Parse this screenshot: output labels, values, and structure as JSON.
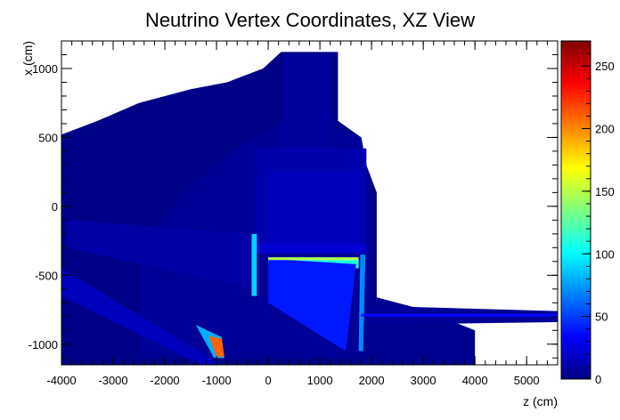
{
  "chart_data": {
    "type": "heatmap",
    "title": "Neutrino Vertex Coordinates, XZ View",
    "xlabel": "z (cm)",
    "ylabel": "x (cm)",
    "xlim": [
      -4000,
      5600
    ],
    "ylim": [
      -1150,
      1200
    ],
    "x_ticks": [
      -4000,
      -3000,
      -2000,
      -1000,
      0,
      1000,
      2000,
      3000,
      4000,
      5000
    ],
    "y_ticks": [
      -1000,
      -500,
      0,
      500,
      1000
    ],
    "colorbar": {
      "min": 0,
      "max": 270,
      "ticks": [
        0,
        50,
        100,
        150,
        200,
        250
      ]
    },
    "colormap": [
      "#00007f",
      "#0000ff",
      "#007fff",
      "#00ffff",
      "#7fff7f",
      "#ffff00",
      "#ff7f00",
      "#ff0000",
      "#7f0000"
    ],
    "grid": false,
    "legend": "none",
    "regions": [
      {
        "name": "outer diffuse cloud",
        "shape": "poly",
        "level": 2,
        "points": [
          [
            -4000,
            -1150
          ],
          [
            2100,
            -1150
          ],
          [
            2100,
            100
          ],
          [
            1900,
            300
          ],
          [
            1800,
            500
          ],
          [
            1350,
            620
          ],
          [
            1350,
            1120
          ],
          [
            250,
            1120
          ],
          [
            -100,
            1000
          ],
          [
            -800,
            900
          ],
          [
            -1500,
            850
          ],
          [
            -2500,
            750
          ],
          [
            -3300,
            620
          ],
          [
            -4000,
            520
          ]
        ]
      },
      {
        "name": "central detector hall",
        "shape": "poly",
        "level": 6,
        "points": [
          [
            -2500,
            -1100
          ],
          [
            2000,
            -1100
          ],
          [
            2000,
            -100
          ],
          [
            1900,
            300
          ],
          [
            1800,
            500
          ],
          [
            1350,
            560
          ],
          [
            1250,
            620
          ],
          [
            1100,
            1100
          ],
          [
            350,
            1100
          ],
          [
            250,
            600
          ],
          [
            -500,
            450
          ],
          [
            -1500,
            150
          ],
          [
            -2500,
            -300
          ]
        ]
      },
      {
        "name": "right tail",
        "shape": "poly",
        "level": 4,
        "points": [
          [
            1800,
            -1150
          ],
          [
            4000,
            -1150
          ],
          [
            4000,
            -900
          ],
          [
            3000,
            -750
          ],
          [
            2000,
            -650
          ],
          [
            1800,
            -600
          ]
        ]
      },
      {
        "name": "beam corridor",
        "shape": "poly",
        "level": 6,
        "points": [
          [
            1800,
            -720
          ],
          [
            5600,
            -760
          ],
          [
            5600,
            -840
          ],
          [
            1800,
            -860
          ]
        ]
      },
      {
        "name": "chimney",
        "shape": "rect",
        "level": 8,
        "x": [
          300,
          1200
        ],
        "y": [
          430,
          1100
        ]
      },
      {
        "name": "cryostat outline",
        "shape": "rect",
        "level": 12,
        "x": [
          -250,
          1900
        ],
        "y": [
          -300,
          420
        ]
      },
      {
        "name": "detector interior",
        "shape": "rect",
        "level": 16,
        "x": [
          0,
          1750
        ],
        "y": [
          -270,
          250
        ]
      },
      {
        "name": "interior lower band",
        "shape": "rect",
        "level": 22,
        "x": [
          -250,
          1900
        ],
        "y": [
          -340,
          -270
        ]
      },
      {
        "name": "upper diagonal wedge",
        "shape": "poly",
        "level": 10,
        "points": [
          [
            -3900,
            -100
          ],
          [
            -250,
            -200
          ],
          [
            -250,
            -600
          ],
          [
            -3900,
            -300
          ]
        ]
      },
      {
        "name": "lower diagonal wedge",
        "shape": "poly",
        "level": 16,
        "points": [
          [
            -4000,
            -450
          ],
          [
            -900,
            -1150
          ],
          [
            -1300,
            -1150
          ],
          [
            -4000,
            -650
          ]
        ]
      },
      {
        "name": "front face hot streak",
        "shape": "poly",
        "level": 80,
        "points": [
          [
            -1400,
            -860
          ],
          [
            -900,
            -950
          ],
          [
            -850,
            -1100
          ],
          [
            -1050,
            -1100
          ]
        ]
      },
      {
        "name": "front face peak",
        "shape": "poly",
        "level": 210,
        "points": [
          [
            -1150,
            -940
          ],
          [
            -900,
            -960
          ],
          [
            -850,
            -1090
          ],
          [
            -1000,
            -1090
          ]
        ]
      },
      {
        "name": "bright slab",
        "shape": "poly",
        "level": 110,
        "points": [
          [
            0,
            -370
          ],
          [
            1750,
            -370
          ],
          [
            1750,
            -450
          ],
          [
            0,
            -420
          ]
        ]
      },
      {
        "name": "slanted trough",
        "shape": "poly",
        "level": 40,
        "points": [
          [
            0,
            -380
          ],
          [
            1700,
            -420
          ],
          [
            1500,
            -1050
          ],
          [
            0,
            -700
          ]
        ]
      },
      {
        "name": "left vertical edge",
        "shape": "poly",
        "level": 90,
        "points": [
          [
            -320,
            -200
          ],
          [
            -220,
            -200
          ],
          [
            -220,
            -650
          ],
          [
            -320,
            -650
          ]
        ]
      },
      {
        "name": "right vertical edge",
        "shape": "poly",
        "level": 70,
        "points": [
          [
            1780,
            -350
          ],
          [
            1880,
            -350
          ],
          [
            1840,
            -1050
          ],
          [
            1750,
            -1050
          ]
        ]
      },
      {
        "name": "slab upper edge",
        "shape": "poly",
        "level": 150,
        "points": [
          [
            0,
            -370
          ],
          [
            1750,
            -370
          ],
          [
            1750,
            -390
          ],
          [
            0,
            -390
          ]
        ]
      },
      {
        "name": "beam line bright",
        "shape": "poly",
        "level": 35,
        "points": [
          [
            1800,
            -780
          ],
          [
            5600,
            -780
          ],
          [
            5600,
            -800
          ],
          [
            1800,
            -800
          ]
        ]
      }
    ]
  }
}
